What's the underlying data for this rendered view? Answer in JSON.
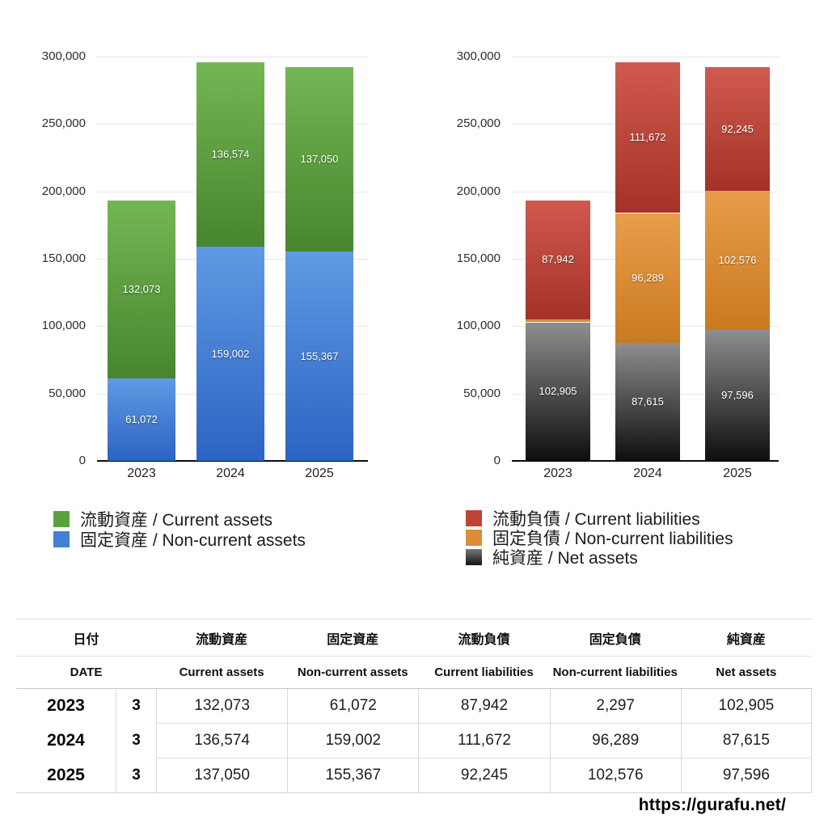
{
  "page": {
    "url_text": "https://gurafu.net/",
    "background": "#ffffff"
  },
  "chart_data": [
    {
      "type": "bar",
      "stacked": true,
      "title": "",
      "categories": [
        "2023",
        "2024",
        "2025"
      ],
      "ylim": [
        0,
        300000
      ],
      "ytick_labels": [
        "300,000",
        "250,000",
        "200,000",
        "150,000",
        "100,000",
        "50,000",
        "0"
      ],
      "grid": true,
      "legend_position": "bottom-left",
      "series": [
        {
          "name": "流動資産 / Current assets",
          "values": [
            132073,
            136574,
            137050
          ],
          "labels": [
            "132,073",
            "136,574",
            "137,050"
          ],
          "color_top": "#74b654",
          "color_bottom": "#47852e",
          "legend_color": "#5ba23f"
        },
        {
          "name": "固定資産 / Non-current assets",
          "values": [
            61072,
            159002,
            155367
          ],
          "labels": [
            "61,072",
            "159,002",
            "155,367"
          ],
          "color_top": "#5f9ae3",
          "color_bottom": "#2d63c3",
          "legend_color": "#4180d5"
        }
      ]
    },
    {
      "type": "bar",
      "stacked": true,
      "title": "",
      "categories": [
        "2023",
        "2024",
        "2025"
      ],
      "ylim": [
        0,
        300000
      ],
      "ytick_labels": [
        "300,000",
        "250,000",
        "200,000",
        "150,000",
        "100,000",
        "50,000",
        "0"
      ],
      "grid": true,
      "legend_position": "bottom-left",
      "series": [
        {
          "name": "流動負債 / Current liabilities",
          "values": [
            87942,
            111672,
            92245
          ],
          "labels": [
            "87,942",
            "111,672",
            "92,245"
          ],
          "color_top": "#d15a50",
          "color_bottom": "#a43127",
          "legend_color": "#bf4337"
        },
        {
          "name": "固定負債 / Non-current liabilities",
          "values": [
            2297,
            96289,
            102576
          ],
          "labels": [
            "2,297",
            "96,289",
            "102,576"
          ],
          "color_top": "#e89d4b",
          "color_bottom": "#ca7a1e",
          "legend_color": "#de8a38"
        },
        {
          "name": "純資産 / Net assets",
          "values": [
            102905,
            87615,
            97596
          ],
          "labels": [
            "102,905",
            "87,615",
            "97,596"
          ],
          "color_top": "#8e8e8e",
          "color_bottom": "#0e0e0e",
          "legend_color": "linear-gradient(#787878,#141414)"
        }
      ]
    }
  ],
  "table": {
    "header_jp": [
      "日付",
      "流動資産",
      "固定資産",
      "流動負債",
      "固定負債",
      "純資産"
    ],
    "header_en": [
      "DATE",
      "Current assets",
      "Non-current assets",
      "Current liabilities",
      "Non-current liabilities",
      "Net assets"
    ],
    "rows": [
      {
        "year": "2023",
        "month": "3",
        "values": [
          "132,073",
          "61,072",
          "87,942",
          "2,297",
          "102,905"
        ]
      },
      {
        "year": "2024",
        "month": "3",
        "values": [
          "136,574",
          "159,002",
          "111,672",
          "96,289",
          "87,615"
        ]
      },
      {
        "year": "2025",
        "month": "3",
        "values": [
          "137,050",
          "155,367",
          "92,245",
          "102,576",
          "97,596"
        ]
      }
    ]
  }
}
